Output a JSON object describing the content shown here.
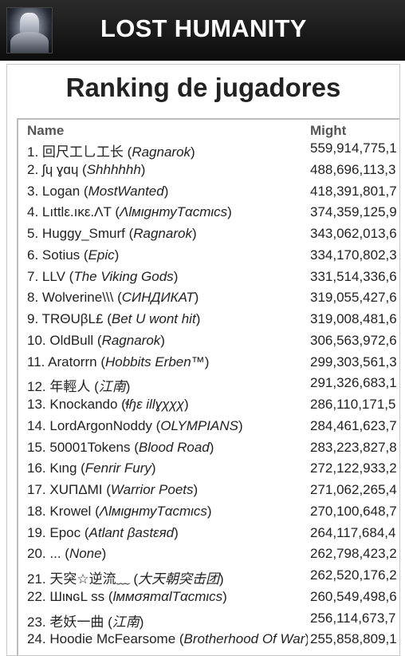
{
  "header": {
    "app_title": "LOST HUMANITY",
    "icon": "game-logo-armored-warrior"
  },
  "page": {
    "title": "Ranking de jugadores"
  },
  "table": {
    "columns": [
      "Name",
      "Might"
    ],
    "rows": [
      {
        "rank": "1.",
        "player": "回尺工乚工长",
        "guild": "Ragnarok",
        "might": "559,914,775,1"
      },
      {
        "rank": "2.",
        "player": "ʃɥ ɣɑɥ",
        "guild": "Shhhhhh",
        "might": "488,696,113,3"
      },
      {
        "rank": "3.",
        "player": "Logan",
        "guild": "MostWanted",
        "might": "418,391,801,7"
      },
      {
        "rank": "4.",
        "player": "Lıttlε.ıκε.ΛT",
        "guild": "ΛlмιgнтуTαcтιcѕ",
        "might": "374,359,125,9"
      },
      {
        "rank": "5.",
        "player": "Huggy_Smurf",
        "guild": "Ragnarok",
        "might": "343,062,013,6"
      },
      {
        "rank": "6.",
        "player": "Sotius",
        "guild": "Epic",
        "might": "334,170,802,3"
      },
      {
        "rank": "7.",
        "player": "LLV",
        "guild": "The Viking Gods",
        "might": "331,514,336,6"
      },
      {
        "rank": "8.",
        "player": "Wolverine\\\\\\",
        "guild": "СИНДИКАТ",
        "might": "319,055,427,6"
      },
      {
        "rank": "9.",
        "player": "TRΘUβL£",
        "guild": "Bet U wont hit",
        "might": "319,008,481,6"
      },
      {
        "rank": "10.",
        "player": "OldBull",
        "guild": "Ragnarok",
        "might": "306,563,972,6"
      },
      {
        "rank": "11.",
        "player": "Aratorrn",
        "guild": "Hobbits Erben™",
        "might": "299,303,561,3"
      },
      {
        "rank": "12.",
        "player": "年輕人",
        "guild": "江南",
        "might": "291,326,683,1"
      },
      {
        "rank": "13.",
        "player": "Knockando",
        "guild": "ɬɧɛ illɣχχχ",
        "might": "286,110,171,5"
      },
      {
        "rank": "14.",
        "player": "LordArgonNoddy",
        "guild": "OLYMPIANS",
        "might": "284,461,623,7"
      },
      {
        "rank": "15.",
        "player": "50001Tokens",
        "guild": "Blood Road",
        "might": "283,223,827,8"
      },
      {
        "rank": "16.",
        "player": "Kιng",
        "guild": "Fenrir Fury",
        "might": "272,122,933,2"
      },
      {
        "rank": "17.",
        "player": "XUΠΔMI",
        "guild": "Warrior Poets",
        "might": "271,062,265,4"
      },
      {
        "rank": "18.",
        "player": "Krowel",
        "guild": "ΛlмιgнтуTαcтιcѕ",
        "might": "270,100,648,7"
      },
      {
        "rank": "19.",
        "player": "Epoc",
        "guild": "Atlant βastεяd",
        "might": "264,117,684,4"
      },
      {
        "rank": "20.",
        "player": "...",
        "guild": "None",
        "might": "262,798,423,2"
      },
      {
        "rank": "21.",
        "player": "天突☆逆流﹏",
        "guild": "大天朝突击团",
        "might": "262,520,176,2"
      },
      {
        "rank": "22.",
        "player": "ШιɴɢL ss",
        "guild": "lммσятαlTαcтιcѕ",
        "might": "260,549,498,6"
      },
      {
        "rank": "23.",
        "player": "老妖一曲",
        "guild": "江南",
        "might": "256,114,673,7"
      },
      {
        "rank": "24.",
        "player": "Hoodie McFearsome",
        "guild": "Brotherhood Of War",
        "might": "255,858,809,1"
      }
    ]
  }
}
